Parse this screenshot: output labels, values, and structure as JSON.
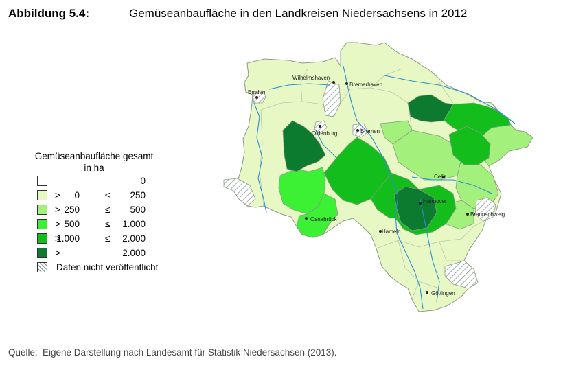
{
  "figure_label": "Abbildung 5.4:",
  "title": "Gemüseanbaufläche in den Landkreisen Niedersachsens in 2012",
  "legend": {
    "title_line1": "Gemüseanbaufläche gesamt",
    "title_line2": "in ha",
    "classes": [
      {
        "op": "",
        "lower": "",
        "rel": "",
        "upper": "0",
        "color": "#ffffff"
      },
      {
        "op": ">",
        "lower": "0",
        "rel": "≤",
        "upper": "250",
        "color": "#e8f8c4"
      },
      {
        "op": ">",
        "lower": "250",
        "rel": "≤",
        "upper": "500",
        "color": "#a3f07c"
      },
      {
        "op": ">",
        "lower": "500",
        "rel": "≤",
        "upper": "1.000",
        "color": "#3cf034"
      },
      {
        "op": ">",
        "lower": "1.000",
        "rel": "≤",
        "upper": "2.000",
        "color": "#13be1c"
      },
      {
        "op": ">",
        "lower": "",
        "rel": "",
        "upper": "2.000",
        "color": "#0c7a2f"
      }
    ],
    "hatched_label": "Daten nicht veröffentlicht"
  },
  "cities": [
    "Wilhelmshaven",
    "Bremerhaven",
    "Emden",
    "Oldenburg",
    "Bremen",
    "Celle",
    "Hannover",
    "Osnabrück",
    "Braunschweig",
    "Hameln",
    "Göttingen"
  ],
  "source": {
    "label": "Quelle:",
    "text": "Eigene Darstellung nach Landesamt für Statistik Niedersachsen (2013)."
  }
}
